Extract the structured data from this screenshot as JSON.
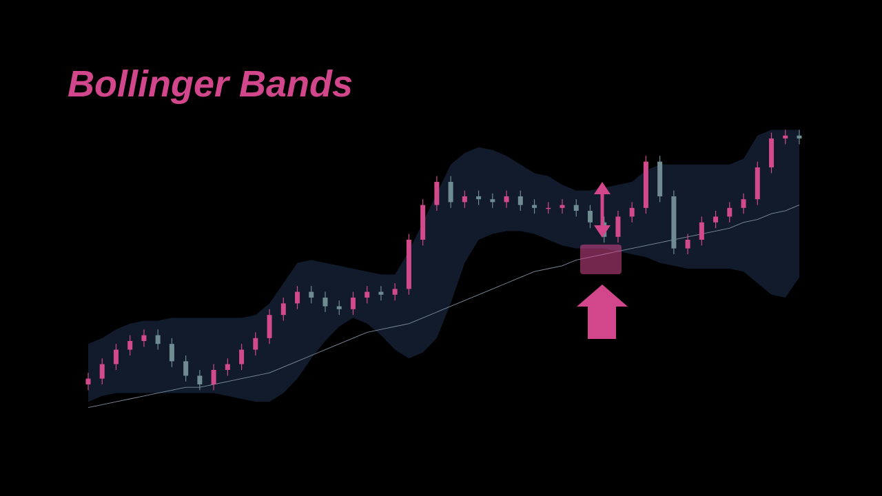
{
  "chart_data": {
    "type": "candlestick",
    "title": "Bollinger Bands",
    "ylim": [
      0,
      100
    ],
    "open": [
      10,
      12,
      17,
      22,
      25,
      27,
      24,
      18,
      13,
      10,
      15,
      17,
      22,
      26,
      34,
      38,
      42,
      40,
      37,
      36,
      40,
      42,
      41,
      43,
      60,
      72,
      80,
      73,
      75,
      74,
      73,
      75,
      72,
      71,
      71,
      72,
      70,
      66,
      61,
      68,
      71,
      87,
      75,
      57,
      60,
      66,
      68,
      71,
      74,
      85,
      95,
      96
    ],
    "high": [
      14,
      19,
      24,
      27,
      29,
      29,
      26,
      20,
      15,
      17,
      19,
      24,
      28,
      36,
      40,
      44,
      44,
      42,
      39,
      42,
      44,
      44,
      45,
      62,
      74,
      82,
      82,
      77,
      77,
      76,
      77,
      77,
      74,
      73,
      74,
      74,
      72,
      68,
      70,
      73,
      89,
      89,
      77,
      62,
      68,
      70,
      73,
      76,
      87,
      97,
      98,
      98
    ],
    "low": [
      8,
      10,
      15,
      20,
      23,
      22,
      16,
      11,
      8,
      8,
      13,
      15,
      20,
      24,
      32,
      36,
      38,
      35,
      34,
      34,
      38,
      39,
      39,
      41,
      58,
      70,
      71,
      71,
      72,
      71,
      71,
      70,
      69,
      69,
      69,
      68,
      64,
      59,
      59,
      66,
      69,
      73,
      55,
      55,
      58,
      64,
      66,
      69,
      72,
      83,
      93,
      93
    ],
    "close": [
      12,
      17,
      22,
      25,
      27,
      24,
      18,
      13,
      10,
      15,
      17,
      22,
      26,
      34,
      38,
      42,
      40,
      37,
      36,
      40,
      42,
      41,
      43,
      60,
      72,
      80,
      73,
      75,
      74,
      73,
      75,
      72,
      71,
      71,
      72,
      70,
      66,
      61,
      68,
      71,
      87,
      75,
      57,
      60,
      66,
      68,
      71,
      74,
      85,
      95,
      96,
      95
    ],
    "upper": [
      24,
      26,
      29,
      31,
      32,
      32,
      33,
      33,
      33,
      33,
      33,
      33,
      34,
      38,
      45,
      52,
      53,
      52,
      51,
      50,
      49,
      48,
      48,
      56,
      66,
      76,
      86,
      90,
      92,
      91,
      89,
      86,
      83,
      82,
      79,
      77,
      77,
      78,
      79,
      80,
      84,
      86,
      86,
      86,
      86,
      86,
      86,
      88,
      96,
      98,
      98,
      98
    ],
    "middle": [
      2,
      3,
      4,
      5,
      6,
      7,
      8,
      9,
      9,
      10,
      11,
      12,
      13,
      14,
      16,
      18,
      20,
      22,
      24,
      26,
      28,
      29,
      30,
      31,
      33,
      35,
      37,
      39,
      41,
      43,
      45,
      47,
      49,
      50,
      51,
      53,
      54,
      55,
      56,
      57,
      58,
      59,
      60,
      61,
      62,
      63,
      64,
      66,
      67,
      69,
      70,
      72
    ],
    "lower": [
      4,
      6,
      7,
      7,
      7,
      7,
      7,
      7,
      7,
      7,
      6,
      5,
      4,
      4,
      7,
      12,
      19,
      25,
      30,
      33,
      31,
      27,
      22,
      19,
      21,
      26,
      38,
      52,
      60,
      62,
      63,
      63,
      62,
      60,
      58,
      57,
      57,
      57,
      56,
      55,
      54,
      52,
      51,
      50,
      50,
      50,
      50,
      49,
      45,
      41,
      40,
      47
    ],
    "up_color": "#d24a8c",
    "down_color": "#6e8c92",
    "band_color": "#111b2b",
    "middle_color": "#7d8d9c"
  }
}
